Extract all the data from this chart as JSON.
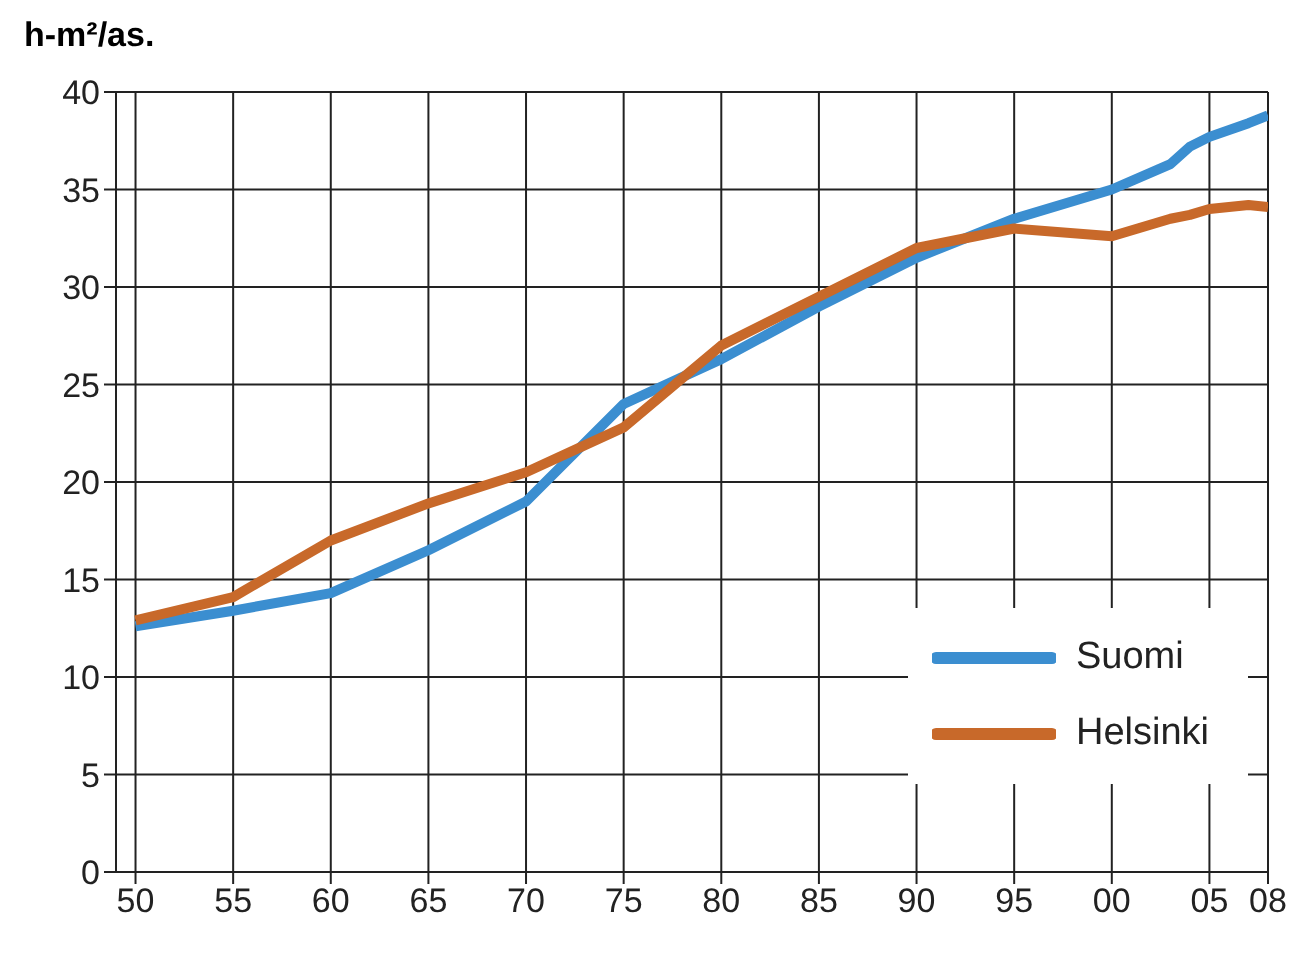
{
  "chart_data": {
    "type": "line",
    "ylabel": "h-m²/as.",
    "x": [
      1950,
      1955,
      1960,
      1965,
      1970,
      1975,
      1980,
      1985,
      1990,
      1995,
      2000,
      2003,
      2004,
      2005,
      2007,
      2008
    ],
    "series": [
      {
        "name": "Suomi",
        "color": "#3b8ed0",
        "values": [
          12.6,
          13.4,
          14.3,
          16.5,
          19,
          24,
          26.3,
          29,
          31.5,
          33.5,
          35,
          36.3,
          37.2,
          37.7,
          38.4,
          38.8
        ]
      },
      {
        "name": "Helsinki",
        "color": "#c8692a",
        "values": [
          12.9,
          14.1,
          17,
          18.9,
          20.5,
          22.8,
          27,
          29.5,
          32,
          33,
          32.6,
          33.5,
          33.7,
          34,
          34.2,
          34.1
        ]
      }
    ],
    "xlim": [
      1949,
      2008
    ],
    "xticks": [
      {
        "value": 1950,
        "label": "50"
      },
      {
        "value": 1955,
        "label": "55"
      },
      {
        "value": 1960,
        "label": "60"
      },
      {
        "value": 1965,
        "label": "65"
      },
      {
        "value": 1970,
        "label": "70"
      },
      {
        "value": 1975,
        "label": "75"
      },
      {
        "value": 1980,
        "label": "80"
      },
      {
        "value": 1985,
        "label": "85"
      },
      {
        "value": 1990,
        "label": "90"
      },
      {
        "value": 1995,
        "label": "95"
      },
      {
        "value": 2000,
        "label": "00"
      },
      {
        "value": 2005,
        "label": "05"
      },
      {
        "value": 2008,
        "label": "08"
      }
    ],
    "ylim": [
      0,
      40
    ],
    "yticks": [
      0,
      5,
      10,
      15,
      20,
      25,
      30,
      35,
      40
    ],
    "grid": true,
    "legend": "bottom right",
    "marker": "none",
    "line_style": "solid"
  }
}
